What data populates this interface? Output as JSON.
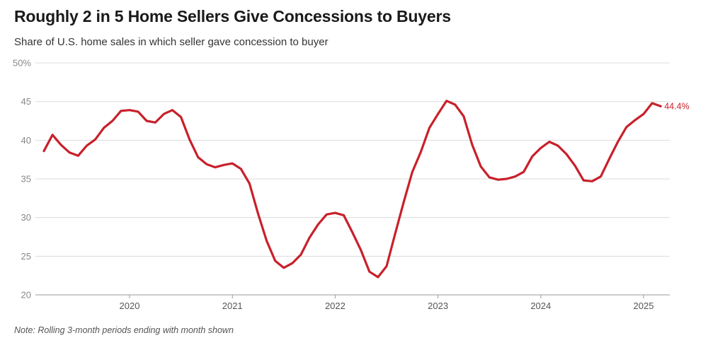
{
  "header": {
    "title": "Roughly 2 in 5 Home Sellers Give Concessions to Buyers",
    "subtitle": "Share of U.S. home sales in which seller gave concession to buyer"
  },
  "footer": {
    "note": "Note: Rolling 3-month periods ending with month shown"
  },
  "colors": {
    "series": "#c8202a",
    "grid": "#dcdcdc"
  },
  "chart_data": {
    "type": "line",
    "title": "Roughly 2 in 5 Home Sellers Give Concessions to Buyers",
    "subtitle": "Share of U.S. home sales in which seller gave concession to buyer",
    "xlabel": "",
    "ylabel": "",
    "ylim": [
      20,
      50
    ],
    "yticks": [
      20,
      25,
      30,
      35,
      40,
      45,
      50
    ],
    "ytick_labels": [
      "20",
      "25",
      "30",
      "35",
      "40",
      "45",
      "50%"
    ],
    "xticks": [
      2020,
      2021,
      2022,
      2023,
      2024,
      2025
    ],
    "xtick_labels": [
      "2020",
      "2021",
      "2022",
      "2023",
      "2024",
      "2025"
    ],
    "grid": true,
    "end_label": "44.4%",
    "series": [
      {
        "points": [
          [
            "2019-03",
            38.6
          ],
          [
            "2019-04",
            40.7
          ],
          [
            "2019-05",
            39.4
          ],
          [
            "2019-06",
            38.4
          ],
          [
            "2019-07",
            38.0
          ],
          [
            "2019-08",
            39.3
          ],
          [
            "2019-09",
            40.1
          ],
          [
            "2019-10",
            41.6
          ],
          [
            "2019-11",
            42.5
          ],
          [
            "2019-12",
            43.8
          ],
          [
            "2020-01",
            43.9
          ],
          [
            "2020-02",
            43.7
          ],
          [
            "2020-03",
            42.5
          ],
          [
            "2020-04",
            42.3
          ],
          [
            "2020-05",
            43.4
          ],
          [
            "2020-06",
            43.9
          ],
          [
            "2020-07",
            43.0
          ],
          [
            "2020-08",
            40.1
          ],
          [
            "2020-09",
            37.8
          ],
          [
            "2020-10",
            36.9
          ],
          [
            "2020-11",
            36.5
          ],
          [
            "2020-12",
            36.8
          ],
          [
            "2021-01",
            37.0
          ],
          [
            "2021-02",
            36.3
          ],
          [
            "2021-03",
            34.4
          ],
          [
            "2021-04",
            30.5
          ],
          [
            "2021-05",
            27.0
          ],
          [
            "2021-06",
            24.4
          ],
          [
            "2021-07",
            23.5
          ],
          [
            "2021-08",
            24.1
          ],
          [
            "2021-09",
            25.2
          ],
          [
            "2021-10",
            27.4
          ],
          [
            "2021-11",
            29.1
          ],
          [
            "2021-12",
            30.4
          ],
          [
            "2022-01",
            30.6
          ],
          [
            "2022-02",
            30.3
          ],
          [
            "2022-03",
            28.1
          ],
          [
            "2022-04",
            25.8
          ],
          [
            "2022-05",
            23.0
          ],
          [
            "2022-06",
            22.3
          ],
          [
            "2022-07",
            23.7
          ],
          [
            "2022-08",
            27.9
          ],
          [
            "2022-09",
            32.0
          ],
          [
            "2022-10",
            35.9
          ],
          [
            "2022-11",
            38.5
          ],
          [
            "2022-12",
            41.6
          ],
          [
            "2023-01",
            43.4
          ],
          [
            "2023-02",
            45.1
          ],
          [
            "2023-03",
            44.6
          ],
          [
            "2023-04",
            43.1
          ],
          [
            "2023-05",
            39.4
          ],
          [
            "2023-06",
            36.6
          ],
          [
            "2023-07",
            35.2
          ],
          [
            "2023-08",
            34.9
          ],
          [
            "2023-09",
            35.0
          ],
          [
            "2023-10",
            35.3
          ],
          [
            "2023-11",
            35.9
          ],
          [
            "2023-12",
            37.9
          ],
          [
            "2024-01",
            39.0
          ],
          [
            "2024-02",
            39.8
          ],
          [
            "2024-03",
            39.3
          ],
          [
            "2024-04",
            38.2
          ],
          [
            "2024-05",
            36.7
          ],
          [
            "2024-06",
            34.8
          ],
          [
            "2024-07",
            34.7
          ],
          [
            "2024-08",
            35.3
          ],
          [
            "2024-09",
            37.6
          ],
          [
            "2024-10",
            39.8
          ],
          [
            "2024-11",
            41.7
          ],
          [
            "2024-12",
            42.6
          ],
          [
            "2025-01",
            43.4
          ],
          [
            "2025-02",
            44.8
          ],
          [
            "2025-03",
            44.4
          ]
        ]
      }
    ]
  }
}
